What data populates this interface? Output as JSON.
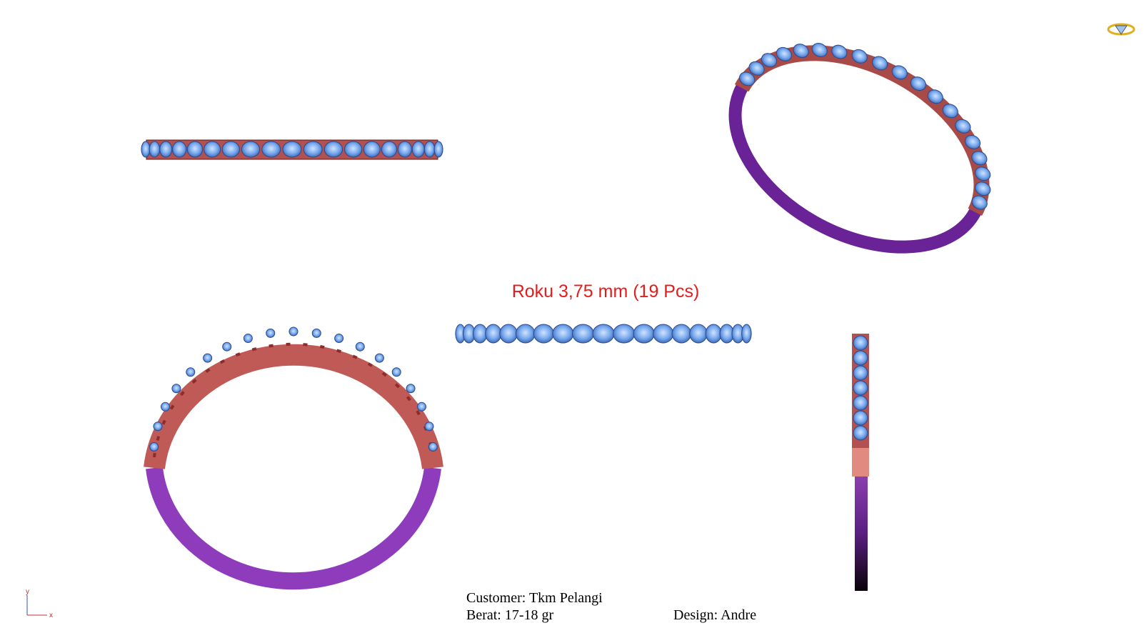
{
  "annotation": "Roku 3,75 mm (19 Pcs)",
  "info": {
    "customer": "Customer: Tkm Pelangi",
    "weight": "Berat: 17-18 gr",
    "designer": "Design: Andre"
  },
  "axes": {
    "y": "y",
    "x": "x"
  }
}
